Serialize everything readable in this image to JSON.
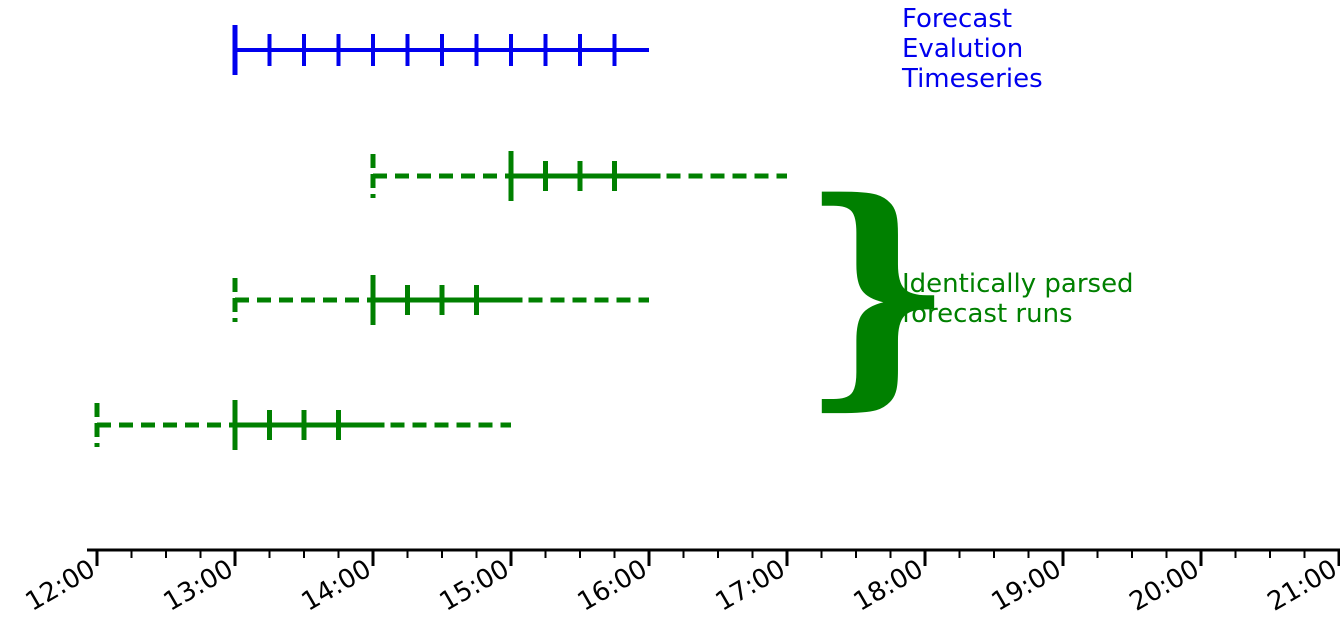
{
  "axis": {
    "tick_labels": [
      "12:00",
      "13:00",
      "14:00",
      "15:00",
      "16:00",
      "17:00",
      "18:00",
      "19:00",
      "20:00",
      "21:00"
    ]
  },
  "colors": {
    "evaluation": "#0000ee",
    "runs": "#008000",
    "axis": "#000000"
  },
  "evaluation_timeseries": {
    "label_lines": [
      "Forecast",
      "Evalution",
      "Timeseries"
    ],
    "start": "13:00",
    "end": "16:00",
    "step_minutes": 15
  },
  "forecast_runs": {
    "label_lines": [
      "Identically parsed",
      "forecast runs"
    ],
    "brace_glyph": "}",
    "runs": [
      {
        "issue": "14:00",
        "parsed_start": "15:00",
        "parsed_last_tick": "15:45",
        "solid_end": "16:05",
        "end": "17:00"
      },
      {
        "issue": "13:00",
        "parsed_start": "14:00",
        "parsed_last_tick": "14:45",
        "solid_end": "15:05",
        "end": "16:00"
      },
      {
        "issue": "12:00",
        "parsed_start": "13:00",
        "parsed_last_tick": "13:45",
        "solid_end": "14:05",
        "end": "15:00"
      }
    ]
  }
}
